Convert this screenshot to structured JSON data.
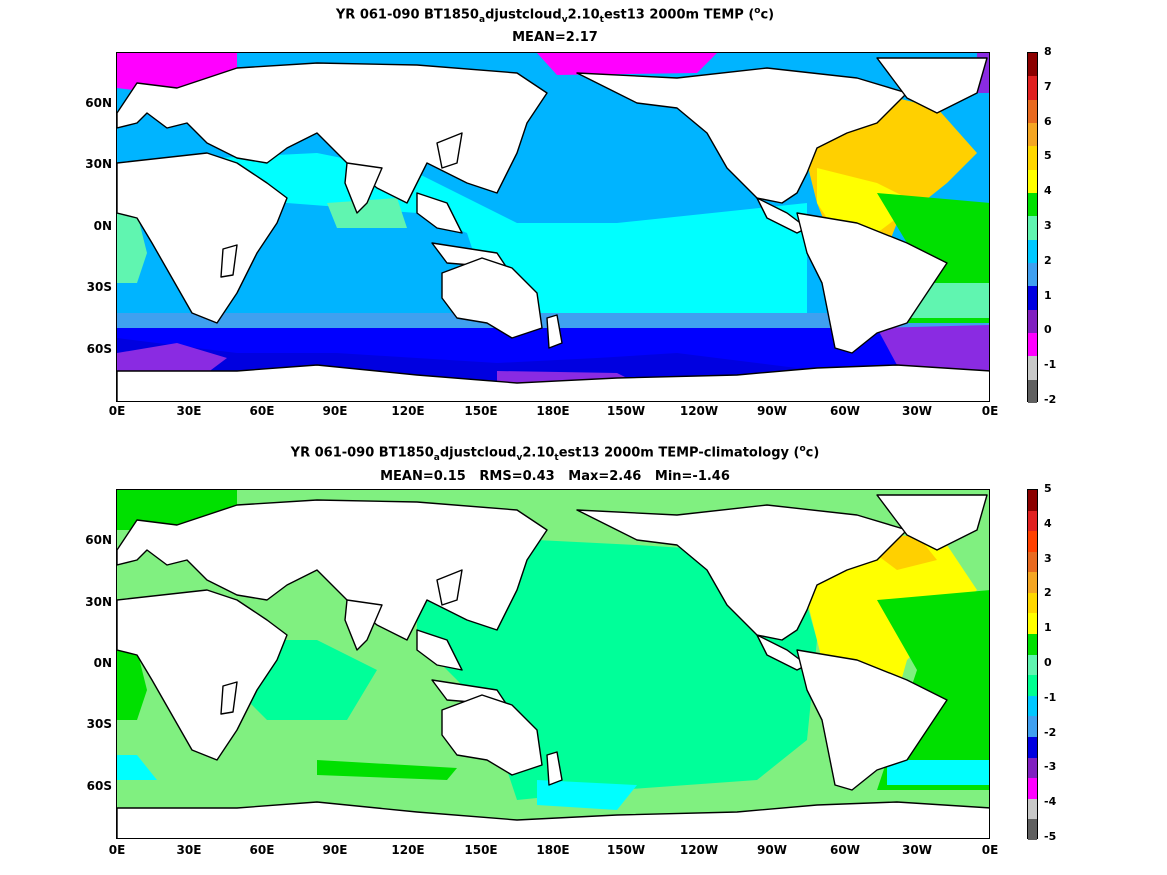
{
  "panel1": {
    "title": "YR 061-090 BT1850adjustcloudv2.10test13 2000m TEMP (oc)",
    "title_parts": [
      "YR 061-090 BT1850",
      "a",
      "djustcloud",
      "v",
      "2.10",
      "t",
      "est13 2000m TEMP (",
      "o",
      "c)"
    ],
    "subtitle": "MEAN=2.17",
    "colorbar_labels": [
      "8",
      "7",
      "6",
      "5",
      "4",
      "3",
      "2",
      "1",
      "0",
      "-1",
      "-2"
    ],
    "colorbar_colors": [
      "#8b0000",
      "#e02020",
      "#e86a20",
      "#f5a623",
      "#ffd700",
      "#ffff00",
      "#00e000",
      "#60f5b0",
      "#00c8ff",
      "#3fa0f0",
      "#0000e0",
      "#8020c0",
      "#ff00ff",
      "#c8c8c8",
      "#606060"
    ]
  },
  "panel2": {
    "title": "YR 061-090 BT1850adjustcloudv2.10test13 2000m TEMP-climatology (oc)",
    "title_parts": [
      "YR 061-090 BT1850",
      "a",
      "djustcloud",
      "v",
      "2.10",
      "t",
      "est13 2000m TEMP-climatology (",
      "o",
      "c)"
    ],
    "subtitle": "MEAN=0.15   RMS=0.43   Max=2.46   Min=-1.46",
    "colorbar_labels": [
      "5",
      "4",
      "3",
      "2",
      "1",
      "0",
      "-1",
      "-2",
      "-3",
      "-4",
      "-5"
    ],
    "colorbar_colors": [
      "#8b0000",
      "#e02020",
      "#ff4000",
      "#e86a20",
      "#f5a623",
      "#ffd700",
      "#ffff00",
      "#00e000",
      "#60f5b0",
      "#00ff90",
      "#00c8ff",
      "#3fa0f0",
      "#0000e0",
      "#8020c0",
      "#ff00ff",
      "#c8c8c8",
      "#606060"
    ]
  },
  "axes": {
    "y_labels": [
      "60N",
      "30N",
      "0N",
      "30S",
      "60S"
    ],
    "x_labels": [
      "0E",
      "30E",
      "60E",
      "90E",
      "120E",
      "150E",
      "180E",
      "150W",
      "120W",
      "90W",
      "60W",
      "30W",
      "0E"
    ]
  },
  "colors": {
    "land": "#ffffff",
    "coast": "#000000",
    "p1_pacific": "#00b4ff",
    "p1_indian": "#00ffff",
    "p1_southern": "#0000ff",
    "p1_atlantic_n": "#ffd000",
    "p1_atlantic_sub": "#ffff00",
    "p1_atlantic_s": "#00e000",
    "p1_arctic": "#ff00ff",
    "p1_weddell": "#8a2be2",
    "p2_base": "#80f080",
    "p2_pacific": "#00ff99",
    "p2_atlantic_n": "#ffff00",
    "p2_atlantic_s": "#00e000",
    "p2_cyan": "#00ffff"
  }
}
